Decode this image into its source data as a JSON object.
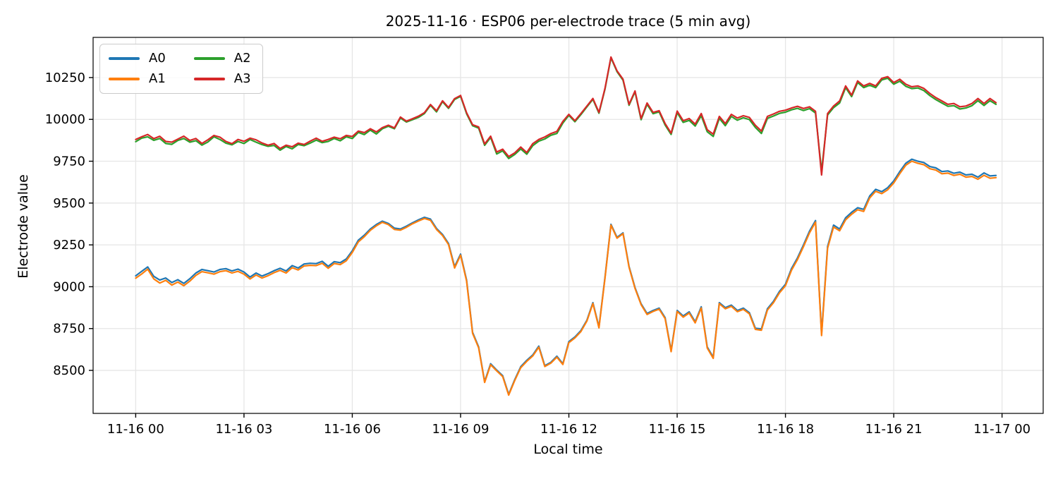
{
  "figure": {
    "title": "2025-11-16 · ESP06 per-electrode trace (5 min avg)"
  },
  "chart_data": {
    "type": "line",
    "title": "2025-11-16 · ESP06 per-electrode trace (5 min avg)",
    "xlabel": "Local time",
    "ylabel": "Electrode value",
    "grid": true,
    "legend_position": "upper left",
    "x_start_hour": 0,
    "x_step_minutes": 10,
    "xlim": [
      -1.18,
      25.14
    ],
    "ylim": [
      8243,
      10490
    ],
    "xticks": [
      {
        "hour": 0,
        "label": "11-16 00"
      },
      {
        "hour": 3,
        "label": "11-16 03"
      },
      {
        "hour": 6,
        "label": "11-16 06"
      },
      {
        "hour": 9,
        "label": "11-16 09"
      },
      {
        "hour": 12,
        "label": "11-16 12"
      },
      {
        "hour": 15,
        "label": "11-16 15"
      },
      {
        "hour": 18,
        "label": "11-16 18"
      },
      {
        "hour": 21,
        "label": "11-16 21"
      },
      {
        "hour": 24,
        "label": "11-17 00"
      }
    ],
    "yticks": [
      8500,
      8750,
      9000,
      9250,
      9500,
      9750,
      10000,
      10250
    ],
    "series": [
      {
        "name": "A0",
        "color": "#1f77b4",
        "values": [
          9065,
          9092,
          9118,
          9062,
          9040,
          9052,
          9025,
          9042,
          9020,
          9048,
          9082,
          9103,
          9096,
          9088,
          9103,
          9108,
          9094,
          9105,
          9088,
          9058,
          9082,
          9064,
          9078,
          9096,
          9110,
          9094,
          9126,
          9112,
          9136,
          9140,
          9138,
          9152,
          9122,
          9150,
          9144,
          9166,
          9215,
          9278,
          9308,
          9345,
          9372,
          9392,
          9378,
          9350,
          9345,
          9362,
          9382,
          9400,
          9415,
          9404,
          9348,
          9312,
          9258,
          9120,
          9195,
          9040,
          8728,
          8640,
          8433,
          8540,
          8502,
          8468,
          8357,
          8445,
          8522,
          8560,
          8592,
          8645,
          8528,
          8548,
          8585,
          8540,
          8672,
          8700,
          8738,
          8800,
          8905,
          8760,
          9055,
          9373,
          9295,
          9322,
          9122,
          8995,
          8898,
          8840,
          8858,
          8872,
          8815,
          8618,
          8858,
          8825,
          8850,
          8790,
          8880,
          8640,
          8578,
          8905,
          8875,
          8890,
          8858,
          8872,
          8845,
          8752,
          8748,
          8868,
          8912,
          8972,
          9015,
          9108,
          9172,
          9250,
          9332,
          9395,
          8720,
          9240,
          9368,
          9345,
          9412,
          9445,
          9472,
          9462,
          9542,
          9582,
          9568,
          9592,
          9632,
          9688,
          9738,
          9762,
          9750,
          9742,
          9718,
          9710,
          9688,
          9692,
          9678,
          9685,
          9668,
          9672,
          9655,
          9680,
          9662,
          9665
        ]
      },
      {
        "name": "A1",
        "color": "#ff7f0e",
        "values": [
          9051,
          9076,
          9105,
          9047,
          9022,
          9038,
          9010,
          9028,
          9006,
          9034,
          9068,
          9090,
          9083,
          9075,
          9090,
          9096,
          9082,
          9092,
          9075,
          9046,
          9070,
          9052,
          9066,
          9084,
          9098,
          9082,
          9114,
          9100,
          9124,
          9128,
          9126,
          9140,
          9110,
          9139,
          9132,
          9155,
          9205,
          9268,
          9299,
          9337,
          9364,
          9385,
          9371,
          9342,
          9338,
          9355,
          9376,
          9393,
          9408,
          9397,
          9342,
          9306,
          9252,
          9112,
          9188,
          9034,
          8722,
          8635,
          8428,
          8534,
          8497,
          8463,
          8352,
          8440,
          8516,
          8554,
          8586,
          8639,
          8523,
          8543,
          8579,
          8535,
          8666,
          8694,
          8732,
          8795,
          8900,
          8754,
          9050,
          9368,
          9290,
          9317,
          9117,
          8990,
          8893,
          8834,
          8852,
          8866,
          8809,
          8612,
          8852,
          8818,
          8843,
          8784,
          8873,
          8634,
          8572,
          8899,
          8868,
          8883,
          8851,
          8865,
          8838,
          8745,
          8740,
          8860,
          8904,
          8963,
          9006,
          9098,
          9162,
          9240,
          9322,
          9386,
          8708,
          9230,
          9357,
          9334,
          9400,
          9433,
          9460,
          9450,
          9530,
          9570,
          9556,
          9580,
          9620,
          9676,
          9726,
          9750,
          9738,
          9729,
          9705,
          9697,
          9675,
          9679,
          9665,
          9672,
          9655,
          9659,
          9642,
          9666,
          9648,
          9652
        ]
      },
      {
        "name": "A2",
        "color": "#2ca02c",
        "values": [
          9867,
          9888,
          9896,
          9875,
          9886,
          9856,
          9851,
          9874,
          9886,
          9864,
          9873,
          9846,
          9865,
          9896,
          9880,
          9858,
          9848,
          9868,
          9856,
          9880,
          9864,
          9849,
          9839,
          9844,
          9816,
          9838,
          9824,
          9850,
          9843,
          9858,
          9876,
          9861,
          9868,
          9886,
          9872,
          9896,
          9886,
          9922,
          9909,
          9936,
          9913,
          9944,
          9959,
          9944,
          10008,
          9984,
          9998,
          10012,
          10035,
          10084,
          10045,
          10106,
          10066,
          10119,
          10138,
          10034,
          9962,
          9948,
          9845,
          9892,
          9793,
          9812,
          9766,
          9790,
          9823,
          9792,
          9843,
          9870,
          9883,
          9905,
          9916,
          9978,
          10024,
          9986,
          10029,
          10075,
          10120,
          10037,
          10180,
          10368,
          10285,
          10234,
          10084,
          10165,
          9998,
          10090,
          10034,
          10045,
          9966,
          9910,
          10040,
          9982,
          9994,
          9960,
          10022,
          9926,
          9898,
          10006,
          9962,
          10018,
          9995,
          10010,
          9999,
          9952,
          9916,
          10006,
          10020,
          10036,
          10043,
          10057,
          10066,
          10053,
          10064,
          10038,
          9690,
          10026,
          10070,
          10098,
          10190,
          10136,
          10220,
          10190,
          10204,
          10190,
          10236,
          10246,
          10210,
          10228,
          10198,
          10184,
          10188,
          10172,
          10142,
          10118,
          10098,
          10078,
          10082,
          10062,
          10068,
          10082,
          10112,
          10083,
          10112,
          10090
        ]
      },
      {
        "name": "A3",
        "color": "#d62728",
        "values": [
          9880,
          9896,
          9910,
          9885,
          9899,
          9868,
          9864,
          9882,
          9900,
          9874,
          9886,
          9856,
          9878,
          9904,
          9894,
          9868,
          9855,
          9880,
          9869,
          9888,
          9878,
          9859,
          9846,
          9856,
          9826,
          9846,
          9836,
          9858,
          9850,
          9870,
          9888,
          9869,
          9880,
          9894,
          9884,
          9904,
          9898,
          9930,
          9921,
          9944,
          9925,
          9951,
          9965,
          9949,
          10014,
          9989,
          10004,
          10019,
          10040,
          10089,
          10051,
          10111,
          10071,
          10124,
          10143,
          10040,
          9968,
          9955,
          9853,
          9900,
          9805,
          9822,
          9778,
          9800,
          9835,
          9802,
          9855,
          9880,
          9895,
          9915,
          9928,
          9988,
          10030,
          9992,
          10035,
          10080,
          10125,
          10042,
          10185,
          10373,
          10290,
          10240,
          10090,
          10170,
          10005,
          10098,
          10042,
          10052,
          9975,
          9918,
          10050,
          9992,
          10005,
          9972,
          10035,
          9938,
          9912,
          10018,
          9975,
          10030,
          10008,
          10022,
          10012,
          9965,
          9930,
          10018,
          10032,
          10048,
          10055,
          10068,
          10078,
          10065,
          10075,
          10048,
          9668,
          10035,
          10080,
          10110,
          10200,
          10145,
          10230,
          10200,
          10215,
          10200,
          10245,
          10255,
          10220,
          10240,
          10210,
          10195,
          10200,
          10185,
          10155,
          10130,
          10110,
          10090,
          10095,
          10075,
          10080,
          10095,
          10125,
          10095,
          10125,
          10100
        ]
      }
    ]
  }
}
